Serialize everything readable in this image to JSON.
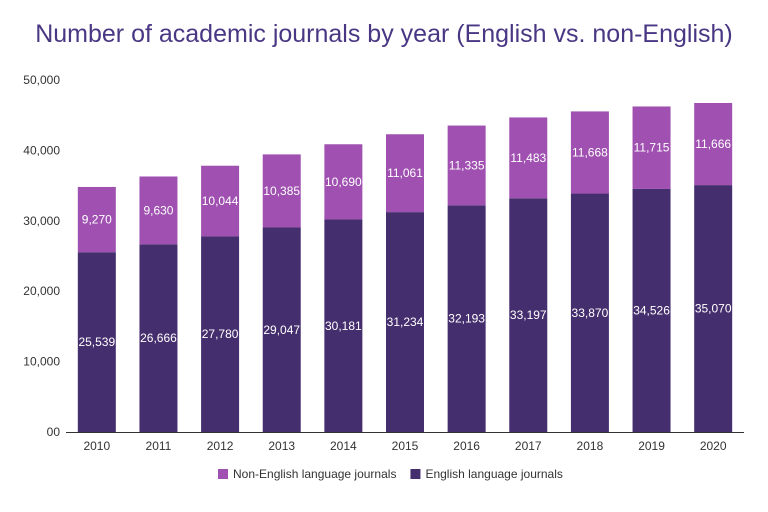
{
  "chart_data": {
    "type": "bar",
    "stacked": true,
    "title": "Number of academic journals by year (English vs. non-English)",
    "xlabel": "",
    "ylabel": "",
    "categories": [
      "2010",
      "2011",
      "2012",
      "2013",
      "2014",
      "2015",
      "2016",
      "2017",
      "2018",
      "2019",
      "2020"
    ],
    "ylim": [
      0,
      50000
    ],
    "yticks": [
      0,
      10000,
      20000,
      30000,
      40000,
      50000
    ],
    "ytick_labels": [
      "00",
      "10,000",
      "20,000",
      "30,000",
      "40,000",
      "50,000"
    ],
    "grid": false,
    "legend_position": "bottom",
    "series": [
      {
        "name": "English language journals",
        "color": "#452e6d",
        "values": [
          25539,
          26666,
          27780,
          29047,
          30181,
          31234,
          32193,
          33197,
          33870,
          34526,
          35070
        ],
        "labels": [
          "25,539",
          "26,666",
          "27,780",
          "29,047",
          "30,181",
          "31,234",
          "32,193",
          "33,197",
          "33,870",
          "34,526",
          "35,070"
        ]
      },
      {
        "name": "Non-English language journals",
        "color": "#9f50b0",
        "values": [
          9270,
          9630,
          10044,
          10385,
          10690,
          11061,
          11335,
          11483,
          11668,
          11715,
          11666
        ],
        "labels": [
          "9,270",
          "9,630",
          "10,044",
          "10,385",
          "10,690",
          "11,061",
          "11,335",
          "11,483",
          "11,668",
          "11,715",
          "11,666"
        ]
      }
    ],
    "legend_order": [
      "Non-English language journals",
      "English language journals"
    ]
  }
}
